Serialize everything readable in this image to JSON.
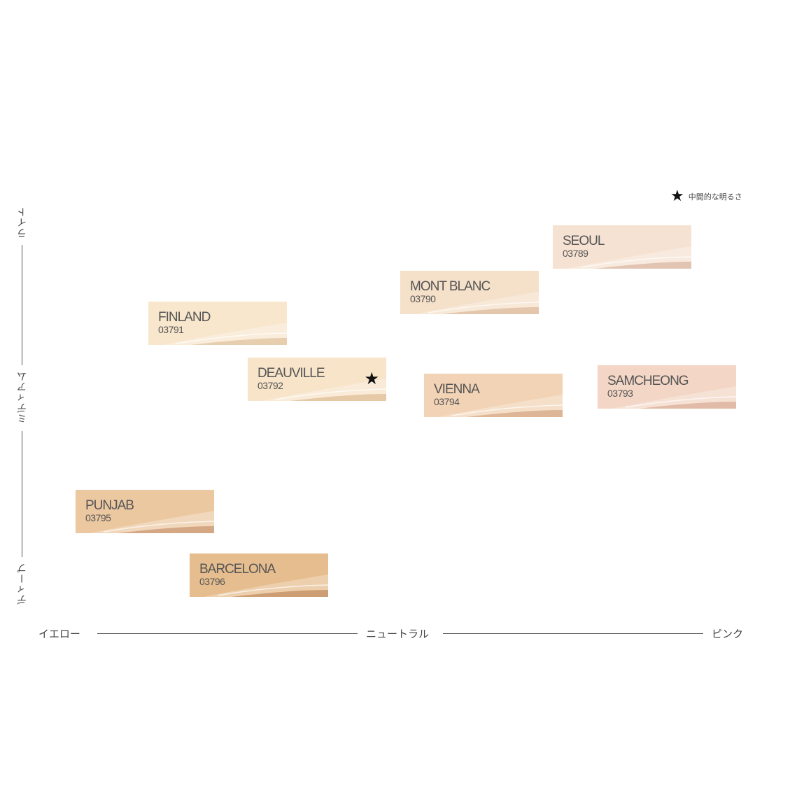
{
  "legend": {
    "symbol": "★",
    "text": "中間的な明るさ"
  },
  "axes": {
    "vertical": {
      "light": "ライト",
      "medium": "ミディアム",
      "deep": "ディープ"
    },
    "horizontal": {
      "yellow": "イエロー",
      "neutral": "ニュートラル",
      "pink": "ピンク"
    }
  },
  "swatches": [
    {
      "name": "SEOUL",
      "code": "03789",
      "color": "#f6e2d2",
      "streak": "#d9b8a3"
    },
    {
      "name": "MONT BLANC",
      "code": "03790",
      "color": "#f5e0c9",
      "streak": "#dcbb9c"
    },
    {
      "name": "FINLAND",
      "code": "03791",
      "color": "#f8e6cd",
      "streak": "#e0c3a0"
    },
    {
      "name": "DEAUVILLE",
      "code": "03792",
      "color": "#f7e4c9",
      "streak": "#dfbf98",
      "star": "★"
    },
    {
      "name": "VIENNA",
      "code": "03794",
      "color": "#f2d3b5",
      "streak": "#d3a884"
    },
    {
      "name": "SAMCHEONG",
      "code": "03793",
      "color": "#f3d6c5",
      "streak": "#d9ae97"
    },
    {
      "name": "PUNJAB",
      "code": "03795",
      "color": "#ecc8a1",
      "streak": "#c99872"
    },
    {
      "name": "BARCELONA",
      "code": "03796",
      "color": "#e6bd8e",
      "streak": "#c28e62"
    }
  ]
}
